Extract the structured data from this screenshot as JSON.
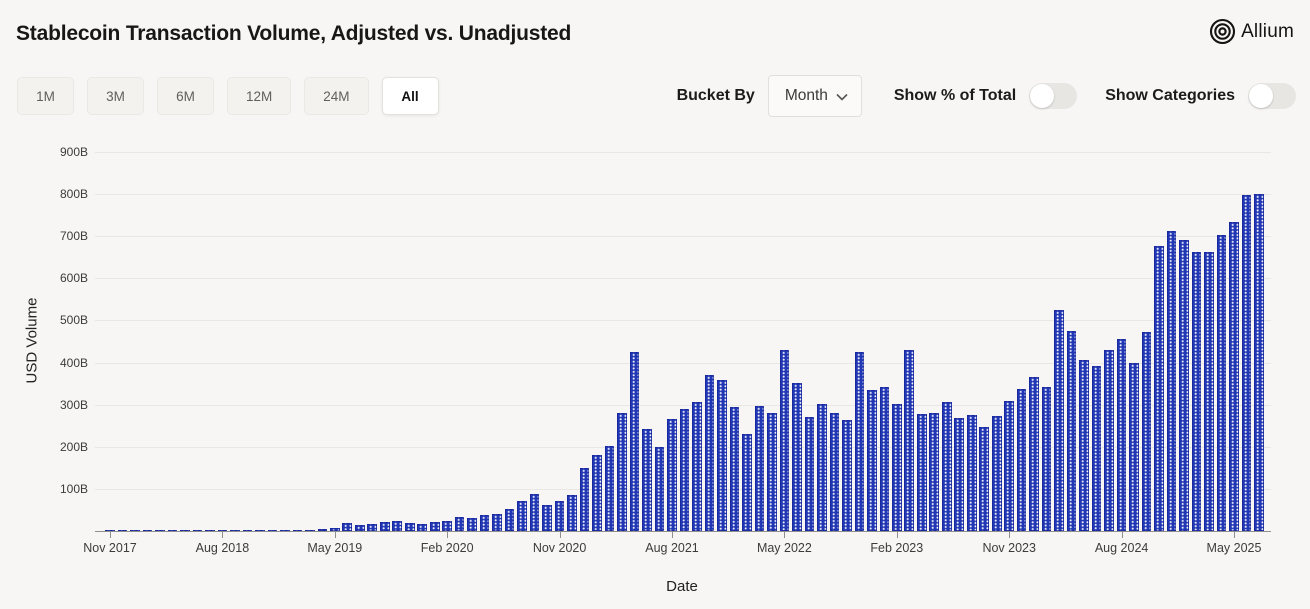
{
  "header": {
    "title": "Stablecoin Transaction Volume, Adjusted vs. Unadjusted",
    "brand": "Allium"
  },
  "controls": {
    "range_buttons": [
      {
        "label": "1M",
        "active": false
      },
      {
        "label": "3M",
        "active": false
      },
      {
        "label": "6M",
        "active": false
      },
      {
        "label": "12M",
        "active": false
      },
      {
        "label": "24M",
        "active": false
      },
      {
        "label": "All",
        "active": true
      }
    ],
    "bucket_by_label": "Bucket By",
    "bucket_value": "Month",
    "show_percent_toggle": {
      "label": "Show % of Total",
      "on": false
    },
    "show_categories_toggle": {
      "label": "Show Categories",
      "on": false
    }
  },
  "chart_data": {
    "type": "bar",
    "title": "Stablecoin Transaction Volume, Adjusted vs. Unadjusted",
    "xlabel": "Date",
    "ylabel": "USD Volume",
    "unit": "billions of USD",
    "ylim": [
      0,
      900
    ],
    "grid": true,
    "legend": "none",
    "bar_color": "#2137b3",
    "bar_pattern": "white-dot-grid",
    "y_ticks": [
      "100B",
      "200B",
      "300B",
      "400B",
      "500B",
      "600B",
      "700B",
      "800B",
      "900B"
    ],
    "x_ticks": [
      {
        "label": "Nov 2017",
        "month_index": 0
      },
      {
        "label": "Aug 2018",
        "month_index": 9
      },
      {
        "label": "May 2019",
        "month_index": 18
      },
      {
        "label": "Feb 2020",
        "month_index": 27
      },
      {
        "label": "Nov 2020",
        "month_index": 36
      },
      {
        "label": "Aug 2021",
        "month_index": 45
      },
      {
        "label": "May 2022",
        "month_index": 54
      },
      {
        "label": "Feb 2023",
        "month_index": 63
      },
      {
        "label": "Nov 2023",
        "month_index": 72
      },
      {
        "label": "Aug 2024",
        "month_index": 81
      },
      {
        "label": "May 2025",
        "month_index": 90
      }
    ],
    "points": [
      {
        "month": "Nov 2017",
        "value": 0.4
      },
      {
        "month": "Dec 2017",
        "value": 1.2
      },
      {
        "month": "Jan 2018",
        "value": 1.5
      },
      {
        "month": "Feb 2018",
        "value": 1.2
      },
      {
        "month": "Mar 2018",
        "value": 1.3
      },
      {
        "month": "Apr 2018",
        "value": 1.2
      },
      {
        "month": "May 2018",
        "value": 1.4
      },
      {
        "month": "Jun 2018",
        "value": 1.3
      },
      {
        "month": "Jul 2018",
        "value": 1.4
      },
      {
        "month": "Aug 2018",
        "value": 1.6
      },
      {
        "month": "Sep 2018",
        "value": 1.8
      },
      {
        "month": "Oct 2018",
        "value": 2.0
      },
      {
        "month": "Nov 2018",
        "value": 2.2
      },
      {
        "month": "Dec 2018",
        "value": 2.4
      },
      {
        "month": "Jan 2019",
        "value": 2.5
      },
      {
        "month": "Feb 2019",
        "value": 2.8
      },
      {
        "month": "Mar 2019",
        "value": 3.5
      },
      {
        "month": "Apr 2019",
        "value": 4.5
      },
      {
        "month": "May 2019",
        "value": 8
      },
      {
        "month": "Jun 2019",
        "value": 20
      },
      {
        "month": "Jul 2019",
        "value": 15
      },
      {
        "month": "Aug 2019",
        "value": 17
      },
      {
        "month": "Sep 2019",
        "value": 22
      },
      {
        "month": "Oct 2019",
        "value": 24
      },
      {
        "month": "Nov 2019",
        "value": 20
      },
      {
        "month": "Dec 2019",
        "value": 17
      },
      {
        "month": "Jan 2020",
        "value": 22
      },
      {
        "month": "Feb 2020",
        "value": 24
      },
      {
        "month": "Mar 2020",
        "value": 33
      },
      {
        "month": "Apr 2020",
        "value": 30
      },
      {
        "month": "May 2020",
        "value": 38
      },
      {
        "month": "Jun 2020",
        "value": 41
      },
      {
        "month": "Jul 2020",
        "value": 52
      },
      {
        "month": "Aug 2020",
        "value": 71
      },
      {
        "month": "Sep 2020",
        "value": 87
      },
      {
        "month": "Oct 2020",
        "value": 62
      },
      {
        "month": "Nov 2020",
        "value": 72
      },
      {
        "month": "Dec 2020",
        "value": 86
      },
      {
        "month": "Jan 2021",
        "value": 149
      },
      {
        "month": "Feb 2021",
        "value": 181
      },
      {
        "month": "Mar 2021",
        "value": 202
      },
      {
        "month": "Apr 2021",
        "value": 280
      },
      {
        "month": "May 2021",
        "value": 425
      },
      {
        "month": "Jun 2021",
        "value": 243
      },
      {
        "month": "Jul 2021",
        "value": 199
      },
      {
        "month": "Aug 2021",
        "value": 266
      },
      {
        "month": "Sep 2021",
        "value": 290
      },
      {
        "month": "Oct 2021",
        "value": 306
      },
      {
        "month": "Nov 2021",
        "value": 371
      },
      {
        "month": "Dec 2021",
        "value": 359
      },
      {
        "month": "Jan 2022",
        "value": 294
      },
      {
        "month": "Feb 2022",
        "value": 231
      },
      {
        "month": "Mar 2022",
        "value": 298
      },
      {
        "month": "Apr 2022",
        "value": 280
      },
      {
        "month": "May 2022",
        "value": 431
      },
      {
        "month": "Jun 2022",
        "value": 352
      },
      {
        "month": "Jul 2022",
        "value": 271
      },
      {
        "month": "Aug 2022",
        "value": 302
      },
      {
        "month": "Sep 2022",
        "value": 281
      },
      {
        "month": "Oct 2022",
        "value": 264
      },
      {
        "month": "Nov 2022",
        "value": 426
      },
      {
        "month": "Dec 2022",
        "value": 335
      },
      {
        "month": "Jan 2023",
        "value": 343
      },
      {
        "month": "Feb 2023",
        "value": 301
      },
      {
        "month": "Mar 2023",
        "value": 429
      },
      {
        "month": "Apr 2023",
        "value": 279
      },
      {
        "month": "May 2023",
        "value": 280
      },
      {
        "month": "Jun 2023",
        "value": 306
      },
      {
        "month": "Jul 2023",
        "value": 268
      },
      {
        "month": "Aug 2023",
        "value": 276
      },
      {
        "month": "Sep 2023",
        "value": 247
      },
      {
        "month": "Oct 2023",
        "value": 274
      },
      {
        "month": "Nov 2023",
        "value": 308
      },
      {
        "month": "Dec 2023",
        "value": 338
      },
      {
        "month": "Jan 2024",
        "value": 365
      },
      {
        "month": "Feb 2024",
        "value": 341
      },
      {
        "month": "Mar 2024",
        "value": 524
      },
      {
        "month": "Apr 2024",
        "value": 476
      },
      {
        "month": "May 2024",
        "value": 407
      },
      {
        "month": "Jun 2024",
        "value": 393
      },
      {
        "month": "Jul 2024",
        "value": 431
      },
      {
        "month": "Aug 2024",
        "value": 455
      },
      {
        "month": "Sep 2024",
        "value": 398
      },
      {
        "month": "Oct 2024",
        "value": 472
      },
      {
        "month": "Nov 2024",
        "value": 677
      },
      {
        "month": "Dec 2024",
        "value": 713
      },
      {
        "month": "Jan 2025",
        "value": 691
      },
      {
        "month": "Feb 2025",
        "value": 663
      },
      {
        "month": "Mar 2025",
        "value": 663
      },
      {
        "month": "Apr 2025",
        "value": 702
      },
      {
        "month": "May 2025",
        "value": 734
      },
      {
        "month": "Jun 2025",
        "value": 798
      },
      {
        "month": "Jul 2025",
        "value": 800
      }
    ]
  }
}
